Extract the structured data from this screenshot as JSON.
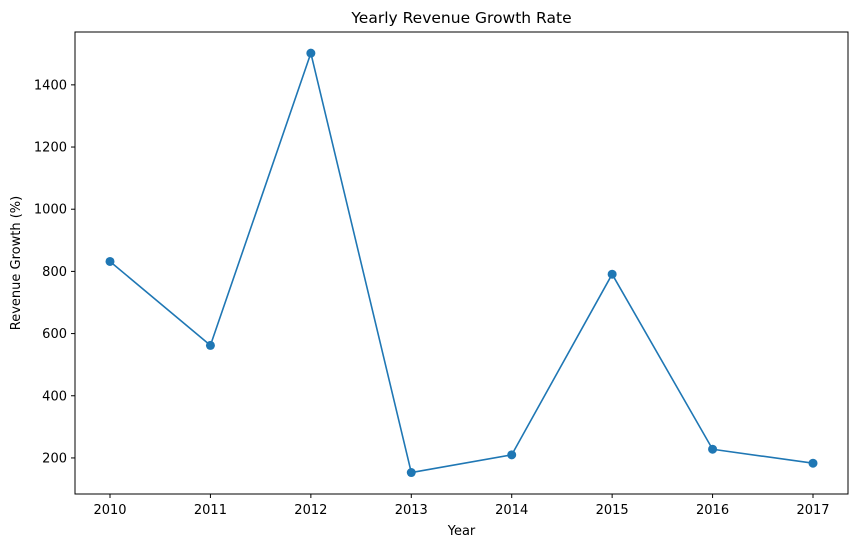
{
  "chart_data": {
    "type": "line",
    "title": "Yearly Revenue Growth Rate",
    "xlabel": "Year",
    "ylabel": "Revenue Growth (%)",
    "x": [
      "2010",
      "2011",
      "2012",
      "2013",
      "2014",
      "2015",
      "2016",
      "2017"
    ],
    "series": [
      {
        "values": [
          832,
          562,
          1502,
          153,
          210,
          791,
          228,
          183
        ]
      }
    ],
    "ylim": [
      84,
      1570
    ],
    "yticks": [
      200,
      400,
      600,
      800,
      1000,
      1200,
      1400
    ],
    "marker": "circle",
    "grid": false,
    "color": "#1f77b4"
  }
}
